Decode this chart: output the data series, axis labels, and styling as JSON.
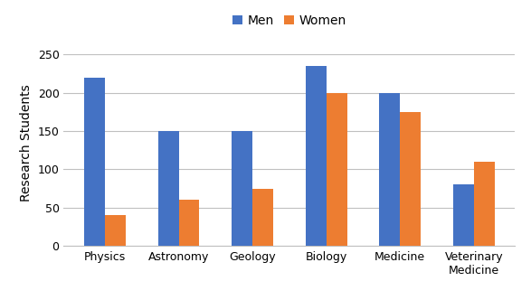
{
  "categories": [
    "Physics",
    "Astronomy",
    "Geology",
    "Biology",
    "Medicine",
    "Veterinary\nMedicine"
  ],
  "men_values": [
    220,
    150,
    150,
    235,
    200,
    80
  ],
  "women_values": [
    40,
    60,
    75,
    200,
    175,
    110
  ],
  "men_color": "#4472C4",
  "women_color": "#ED7D31",
  "ylabel": "Research Students",
  "legend_labels": [
    "Men",
    "Women"
  ],
  "ylim": [
    0,
    270
  ],
  "yticks": [
    0,
    50,
    100,
    150,
    200,
    250
  ],
  "bar_width": 0.28,
  "axis_fontsize": 10,
  "tick_fontsize": 9,
  "legend_fontsize": 10,
  "background_color": "#ffffff",
  "grid_color": "#c0c0c0"
}
